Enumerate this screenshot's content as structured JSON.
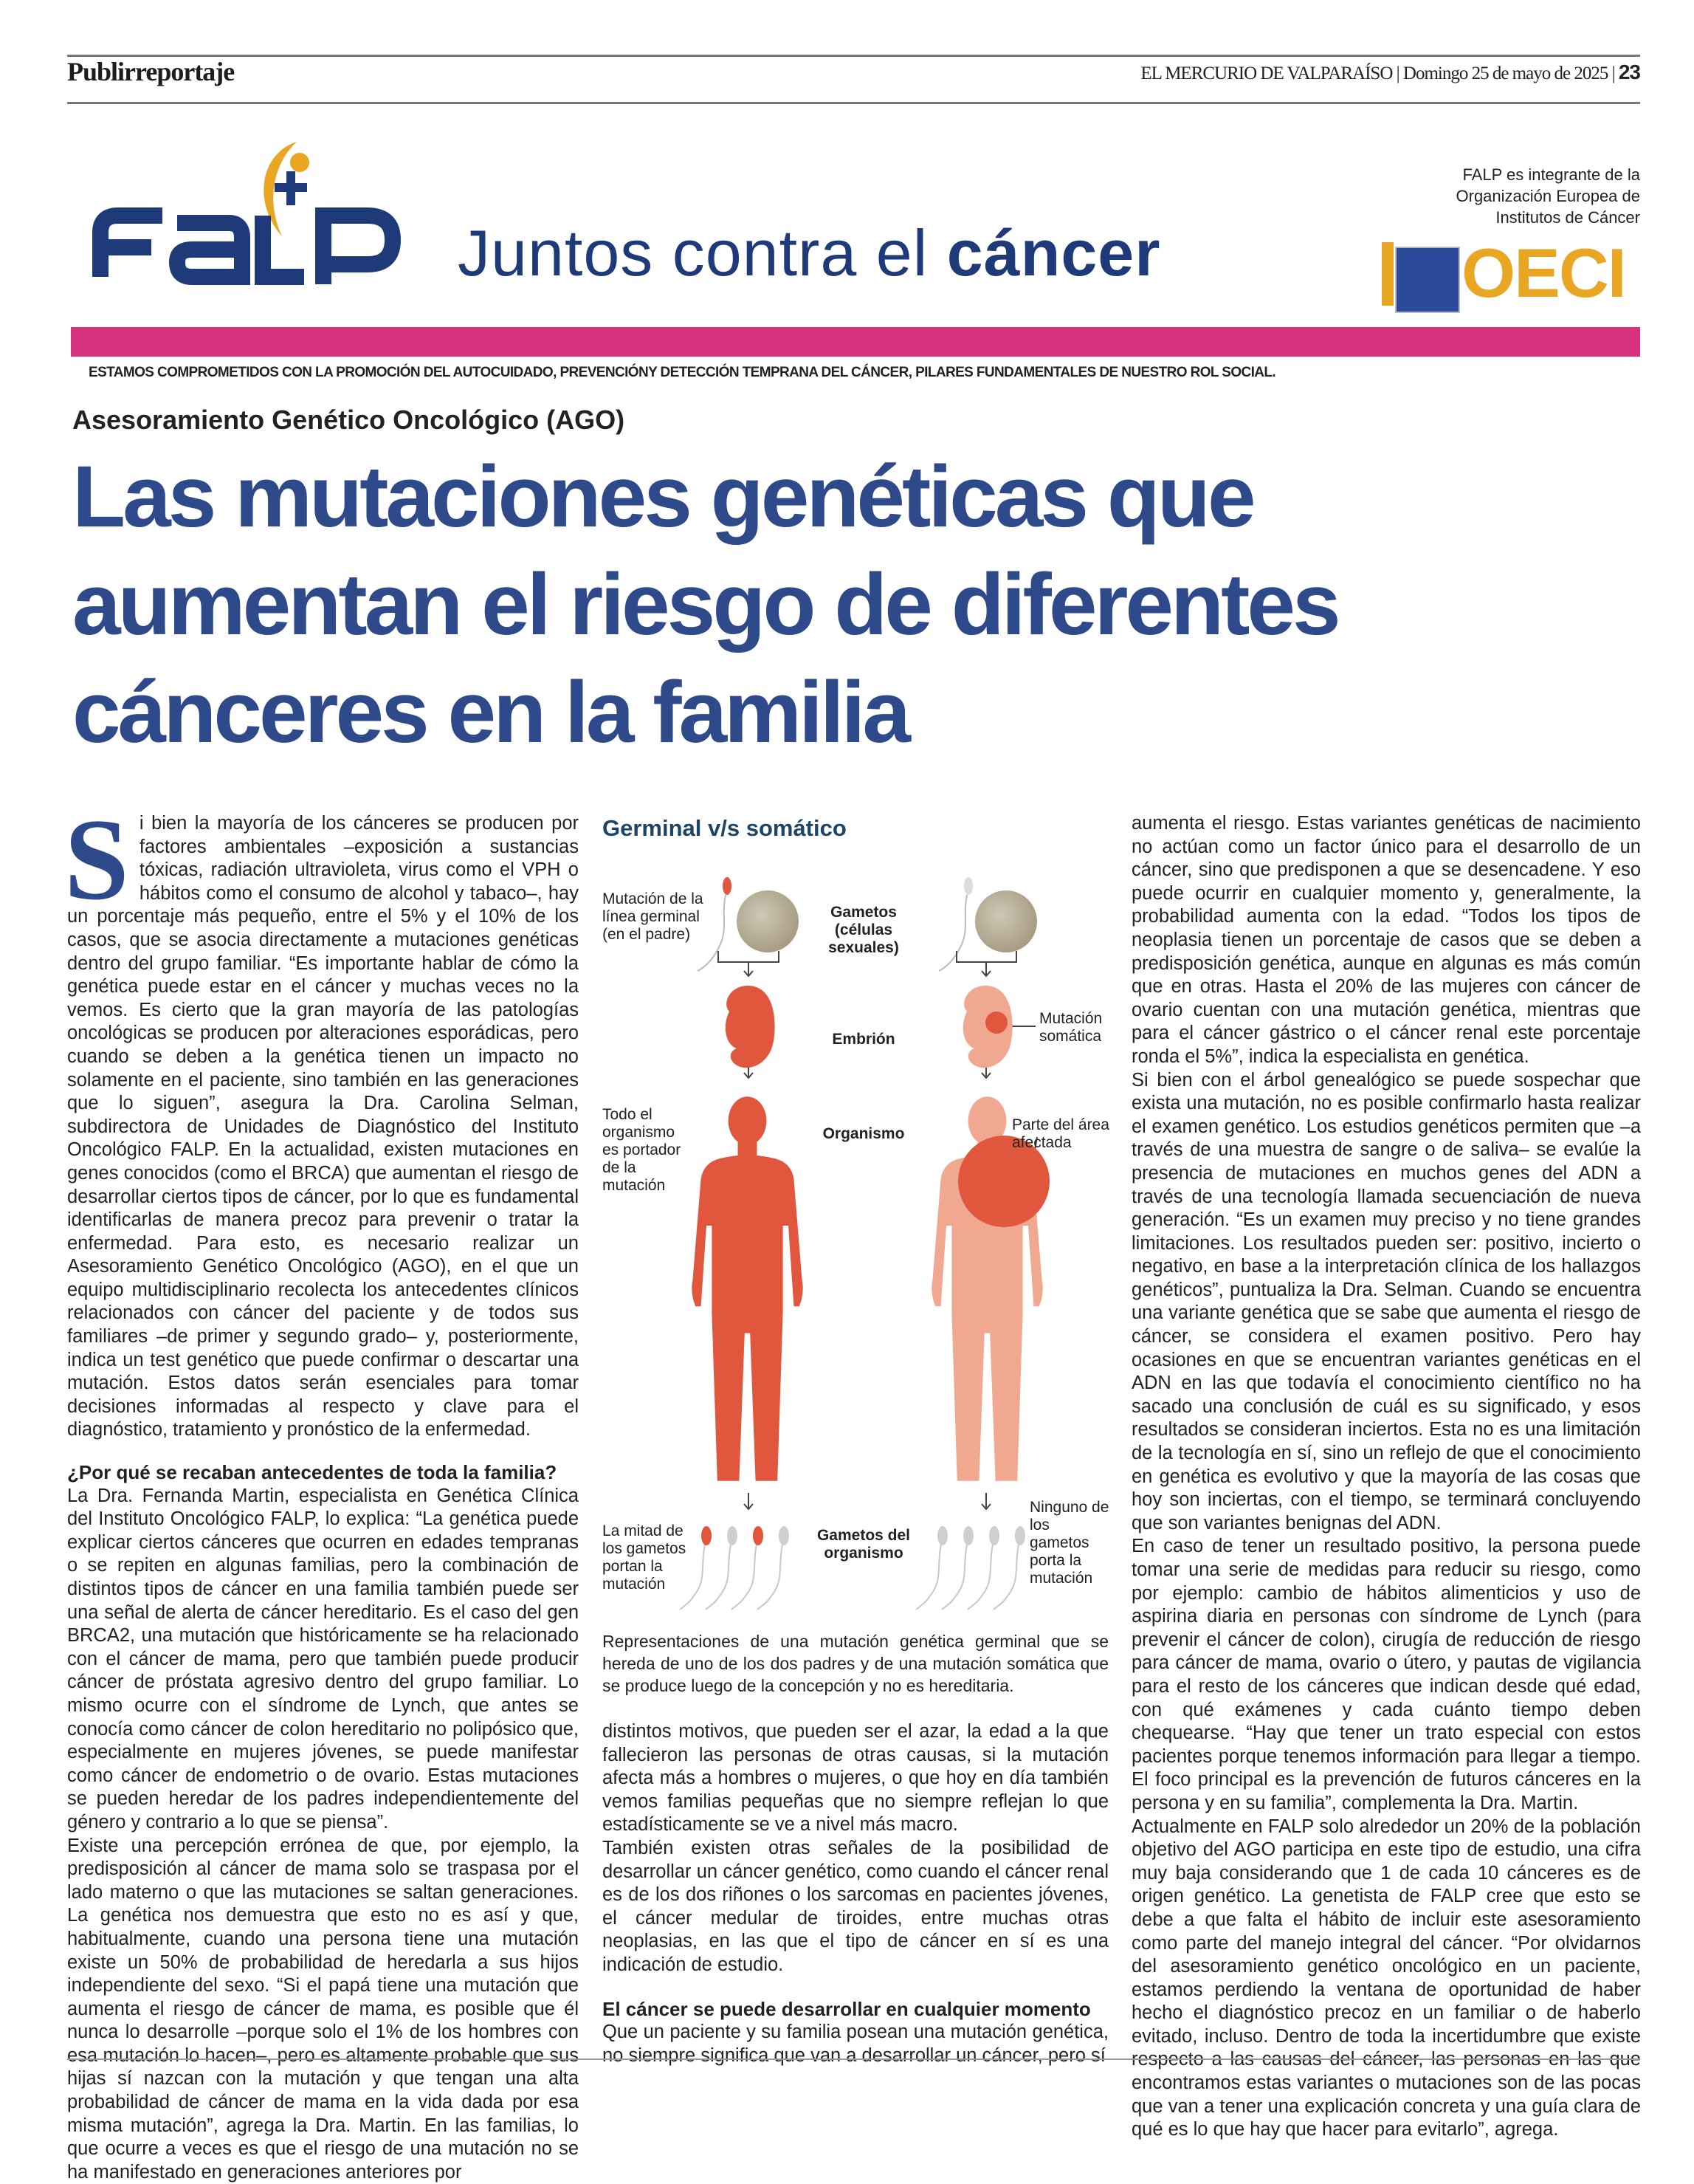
{
  "header": {
    "section": "Publirreportaje",
    "publication": "EL MERCURIO DE VALPARAÍSO",
    "date": "Domingo 25 de mayo de 2025",
    "page_number": "23"
  },
  "brand": {
    "logo_text": "FALP",
    "slogan_regular": "Juntos contra el ",
    "slogan_bold": "cáncer",
    "oeci_note": "FALP es integrante de la Organización Europea de Institutos de Cáncer",
    "oeci_logo_text": "OECI",
    "tagline": "ESTAMOS COMPROMETIDOS CON LA PROMOCIÓN DEL AUTOCUIDADO, PREVENCIÓNY DETECCIÓN TEMPRANA DEL CÁNCER, PILARES FUNDAMENTALES DE NUESTRO ROL SOCIAL.",
    "colors": {
      "blue": "#1f3a78",
      "gold": "#e8a623",
      "pink": "#d8327e",
      "headline": "#2e4a8b"
    }
  },
  "article": {
    "kicker": "Asesoramiento Genético Oncológico (AGO)",
    "headline": [
      "Las mutaciones genéticas que",
      "aumentan el riesgo de diferentes",
      "cánceres en la familia"
    ],
    "dropcap": "S",
    "col1": {
      "p1": "i bien la mayoría de los cánceres se producen por factores ambientales –exposición a sustancias tóxicas, radiación ultravioleta, virus como el VPH o hábitos como el consumo de alcohol y tabaco–, hay un porcentaje más pequeño, entre el 5% y el 10% de los casos, que se asocia directamente a mutaciones genéticas dentro del grupo familiar. “Es importante hablar de cómo la genética puede estar en el cáncer y muchas veces no la vemos. Es cierto que la gran mayoría de las patologías oncológicas se producen por alteraciones esporádicas, pero cuando se deben a la genética tienen un impacto no solamente en el paciente, sino también en las generaciones que lo siguen”, asegura la Dra. Carolina Selman, subdirectora de Unidades de Diagnóstico del Instituto Oncológico FALP. En la actualidad, existen mutaciones en genes conocidos (como el BRCA) que aumentan el riesgo de desarrollar ciertos tipos de cáncer, por lo que es fundamental identificarlas de manera precoz para prevenir o tratar la enfermedad. Para esto, es necesario realizar un Asesoramiento Genético Oncológico (AGO), en el que un equipo multidisciplinario recolecta los antecedentes clínicos relacionados con cáncer del paciente y de todos sus familiares –de primer y segundo grado– y, posteriormente, indica un test genético que puede confirmar o descartar una mutación. Estos datos serán esenciales para tomar decisiones informadas al respecto y clave para el diagnóstico, tratamiento y pronóstico de la enfermedad.",
      "subhead": "¿Por qué se recaban antecedentes de toda la familia?",
      "p2": "La Dra. Fernanda Martin, especialista en Genética Clínica del Instituto Oncológico FALP, lo explica: “La genética puede explicar ciertos cánceres que ocurren en edades tempranas o se repiten en algunas familias, pero la combinación de distintos tipos de cáncer en una familia también puede ser una señal de alerta de cáncer hereditario. Es el caso del gen BRCA2, una mutación que históricamente se ha relacionado con el cáncer de mama, pero que también puede producir cáncer de próstata agresivo dentro del grupo familiar. Lo mismo ocurre con el síndrome de Lynch, que antes se conocía como cáncer de colon hereditario no polipósico que, especialmente en mujeres jóvenes, se puede manifestar como cáncer de endometrio o de ovario. Estas mutaciones se pueden heredar de los padres independientemente del género y contrario a lo que se piensa”.",
      "p3": "Existe una percepción errónea de que, por ejemplo, la predisposición al cáncer de mama solo se traspasa por el lado materno o que las mutaciones se saltan generaciones. La genética nos demuestra que esto no es así y que, habitualmente, cuando una persona tiene una mutación existe un 50% de probabilidad de heredarla a sus hijos independiente del sexo. “Si el papá tiene una mutación que aumenta el riesgo de cáncer de mama, es posible que él nunca lo desarrolle –porque solo el 1% de los hombres con esa mutación lo hacen–, pero es altamente probable que sus hijas sí nazcan con la mutación y que tengan una alta probabilidad de cáncer de mama en la vida dada por esa misma mutación”, agrega la Dra. Martin. En las familias, lo que ocurre a veces es que el riesgo de una mutación no se ha manifestado en generaciones anteriores por"
    },
    "col2": {
      "caption": "Representaciones de una mutación genética germinal que se hereda de uno de los dos padres y de una mutación somática que se produce luego de la concepción y no es hereditaria.",
      "p4": "distintos motivos, que pueden ser el azar, la edad a la que fallecieron las personas de otras causas, si la mutación afecta más a hombres o mujeres, o que hoy en día también vemos familias pequeñas que no siempre reflejan lo que estadísticamente se ve a nivel más macro.",
      "p5": "También existen otras señales de la posibilidad de desarrollar un cáncer genético, como cuando el cáncer renal es de los dos riñones o los sarcomas en pacientes jóvenes, el cáncer medular de tiroides, entre muchas otras neoplasias, en las que el tipo de cáncer en sí es una indicación de estudio.",
      "subhead": "El cáncer se puede desarrollar en cualquier momento",
      "p6": "Que un paciente y su familia posean una mutación genética, no siempre significa que van a desarrollar un cáncer, pero sí"
    },
    "col3": {
      "p7": "aumenta el riesgo. Estas variantes genéticas de nacimiento no actúan como un factor único para el desarrollo de un cáncer, sino que predisponen a que se desencadene. Y eso puede ocurrir en cualquier momento y, generalmente, la probabilidad aumenta con la edad. “Todos los tipos de neoplasia tienen un porcentaje de casos que se deben a predisposición genética, aunque en algunas es más común que en otras. Hasta el 20% de las mujeres con cáncer de ovario cuentan con una mutación genética, mientras que para el cáncer gástrico o el cáncer renal este porcentaje ronda el 5%”, indica la especialista en genética.",
      "p8": "Si bien con el árbol genealógico se puede sospechar que exista una mutación, no es posible confirmarlo hasta realizar el examen genético. Los estudios genéticos permiten que –a través de una muestra de sangre o de saliva– se evalúe la presencia de mutaciones en muchos genes del ADN a través de una tecnología llamada secuenciación de nueva generación. “Es un examen muy preciso y no tiene grandes limitaciones. Los resultados pueden ser: positivo, incierto o negativo, en base a la interpretación clínica de los hallazgos genéticos”, puntualiza la Dra. Selman. Cuando se encuentra una variante genética que se sabe que aumenta el riesgo de cáncer, se considera el examen positivo. Pero hay ocasiones en que se encuentran variantes genéticas en el ADN en las que todavía el conocimiento científico no ha sacado una conclusión de cuál es su significado, y esos resultados se consideran inciertos. Esta no es una limitación de la tecnología en sí, sino un reflejo de que el conocimiento en genética es evolutivo y que la mayoría de las cosas que hoy son inciertas, con el tiempo, se terminará concluyendo que son variantes benignas del ADN.",
      "p9": "En caso de tener un resultado positivo, la persona puede tomar una serie de medidas para reducir su riesgo, como por ejemplo: cambio de hábitos alimenticios y uso de aspirina diaria en personas con síndrome de Lynch (para prevenir el cáncer de colon), cirugía de reducción de riesgo para cáncer de mama, ovario o útero, y pautas de vigilancia para el resto de los cánceres que indican desde qué edad, con qué exámenes y cada cuánto tiempo deben chequearse. “Hay que tener un trato especial con estos pacientes porque tenemos información para llegar a tiempo. El foco principal es la prevención de futuros cánceres en la persona y en su familia”, complementa la Dra. Martin.",
      "p10": "Actualmente en FALP solo alrededor un 20% de la población objetivo del AGO participa en este tipo de estudio, una cifra muy baja considerando que 1 de cada 10 cánceres es de origen genético. La genetista de FALP cree que esto se debe a que falta el hábito de incluir este asesoramiento como parte del manejo integral del cáncer. “Por olvidarnos del asesoramiento genético oncológico en un paciente, estamos perdiendo la ventana de oportunidad de haber hecho el diagnóstico precoz en un familiar o de haberlo evitado, incluso. Dentro de toda la incertidumbre que existe respecto a las causas del cáncer, las personas en las que encontramos estas variantes o mutaciones son de las pocas que van a tener una explicación concreta y una guía clara de qué es lo que hay que hacer para evitarlo”, agrega."
    }
  },
  "infographic": {
    "title": "Germinal v/s somático",
    "left_gamete_note": "Mutación de la línea germinal (en el padre)",
    "gametes_label": "Gametos (células sexuales)",
    "embryo_label": "Embrión",
    "somatic_note": "Mutación somática",
    "organism_label": "Organismo",
    "left_organism_note": "Todo el organismo es portador de la mutación",
    "right_organism_note": "Parte del área afectada",
    "organism_gametes_label": "Gametos del organismo",
    "left_gametes_note": "La mitad de los gametos portan la mutación",
    "right_gametes_note": "Ninguno de los gametos porta la mutación",
    "colors": {
      "mutated": "#e0573d",
      "healthy_body": "#f0a891",
      "cell": "#b5ab94",
      "gamete": "#cfcfcf"
    }
  }
}
